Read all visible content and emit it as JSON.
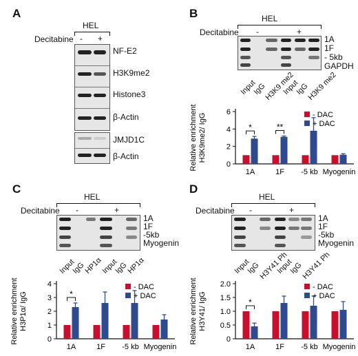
{
  "panels": {
    "A": {
      "label": "A",
      "cell_line": "HEL",
      "treatment": "Decitabine",
      "minus": "-",
      "plus": "+",
      "rows": [
        "NF-E2",
        "H3K9me2",
        "Histone3",
        "β-Actin",
        "JMJD1C",
        "β-Actin"
      ]
    },
    "B": {
      "label": "B",
      "cell_line": "HEL",
      "treatment": "Decitabine",
      "minus": "-",
      "plus": "+",
      "rows": [
        "1A",
        "1F",
        "- 5kb",
        "GAPDH"
      ],
      "lanes": [
        "Input",
        "IgG",
        "H3K9 me2",
        "Input",
        "IgG",
        "H3K9 me2"
      ]
    },
    "C": {
      "label": "C",
      "cell_line": "HEL",
      "treatment": "Decitabine",
      "minus": "-",
      "plus": "+",
      "rows": [
        "1A",
        "1F",
        "-5kb",
        "Myogenin"
      ],
      "lanes": [
        "Input",
        "IgG",
        "HP1α",
        "Input",
        "IgG",
        "HP1α"
      ]
    },
    "D": {
      "label": "D",
      "cell_line": "HEL",
      "treatment": "Decitabine",
      "minus": "-",
      "plus": "+",
      "rows": [
        "1A",
        "1F",
        "-5kb",
        "Myogenin"
      ],
      "lanes": [
        "Input",
        "IgG",
        "H3Y41 Ph",
        "Input",
        "IgG",
        "H3Y41 Ph"
      ]
    }
  },
  "colors": {
    "minus_dac": "#c8102e",
    "plus_dac": "#2e4b8f"
  },
  "chart_data": [
    {
      "type": "bar",
      "panel": "B",
      "ylabel": "Relative enrichment H3K9me2/ IgG",
      "categories": [
        "1A",
        "1F",
        "-5 kb",
        "Myogenin"
      ],
      "ylim": [
        0,
        6
      ],
      "yticks": [
        "0",
        "2",
        "4",
        "6"
      ],
      "series": [
        {
          "name": "- DAC",
          "values": [
            1,
            1,
            1,
            1
          ],
          "errors": [
            0,
            0,
            0,
            0
          ]
        },
        {
          "name": "+ DAC",
          "values": [
            2.9,
            3.1,
            3.8,
            1.05
          ],
          "errors": [
            0.25,
            0.1,
            1.5,
            0.12
          ]
        }
      ],
      "significance": [
        {
          "category": 0,
          "text": "*"
        },
        {
          "category": 1,
          "text": "**"
        }
      ]
    },
    {
      "type": "bar",
      "panel": "C",
      "ylabel": "Relative enrichment H3P1α/ IgG",
      "categories": [
        "1A",
        "1F",
        "-5 kb",
        "Myogenin"
      ],
      "ylim": [
        0,
        4
      ],
      "yticks": [
        "0",
        "1",
        "2",
        "3",
        "4"
      ],
      "series": [
        {
          "name": "- DAC",
          "values": [
            1,
            1,
            1,
            1
          ],
          "errors": [
            0,
            0,
            0,
            0
          ]
        },
        {
          "name": "+ DAC",
          "values": [
            2.3,
            2.6,
            2.6,
            1.4
          ],
          "errors": [
            0.3,
            0.8,
            0.9,
            0.35
          ]
        }
      ],
      "significance": [
        {
          "category": 0,
          "text": "*"
        }
      ]
    },
    {
      "type": "bar",
      "panel": "D",
      "ylabel": "Relative enrichment H3Y41/ IgG",
      "categories": [
        "1A",
        "1F",
        "-5 kb",
        "Myogenin"
      ],
      "ylim": [
        0,
        2.0
      ],
      "yticks": [
        "0",
        "0.5",
        "1.0",
        "1.5",
        "2.0"
      ],
      "series": [
        {
          "name": "- DAC",
          "values": [
            1,
            1,
            1,
            1
          ],
          "errors": [
            0,
            0,
            0,
            0
          ]
        },
        {
          "name": "+ DAC",
          "values": [
            0.45,
            1.3,
            1.2,
            1.05
          ],
          "errors": [
            0.12,
            0.25,
            0.35,
            0.3
          ]
        }
      ],
      "significance": [
        {
          "category": 0,
          "text": "*"
        }
      ]
    }
  ]
}
